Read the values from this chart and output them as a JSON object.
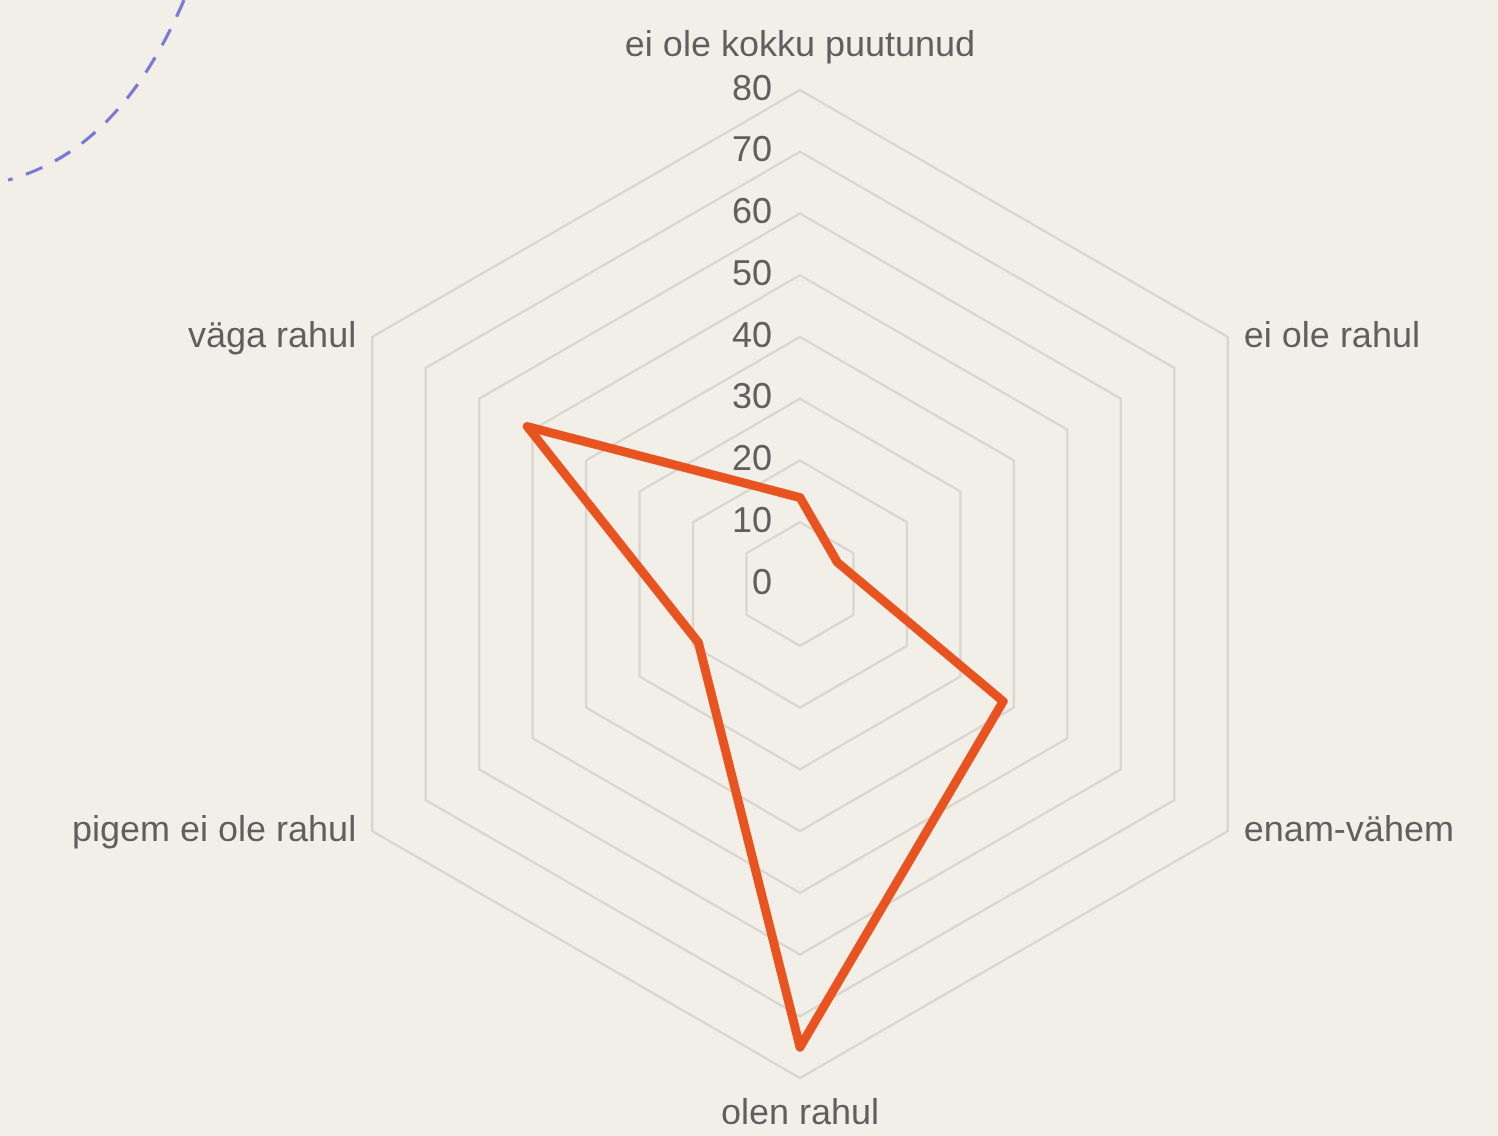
{
  "chart_data": {
    "type": "radar",
    "categories": [
      "ei ole kokku puutunud",
      "ei ole rahul",
      "enam-vähem",
      "olen rahul",
      "pigem ei ole rahul",
      "väga rahul"
    ],
    "series": [
      {
        "color": "#e8531f",
        "values": [
          14,
          7,
          38,
          75,
          19,
          51
        ]
      }
    ],
    "ylim": [
      0,
      80
    ],
    "yticks": [
      0,
      10,
      20,
      30,
      40,
      50,
      60,
      70,
      80
    ],
    "grid": true
  }
}
